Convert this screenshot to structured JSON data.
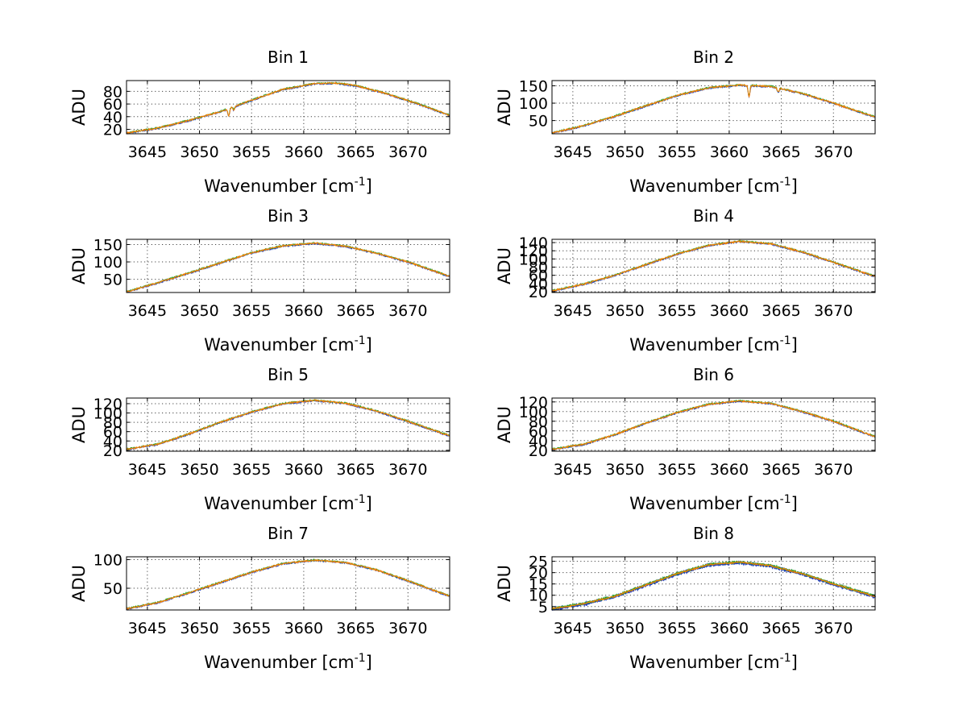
{
  "colors": {
    "series_top": "#ff7f00",
    "series_mid": "#2ca02c",
    "series_low": "#1f3fbf",
    "grid": "#444444",
    "axis": "#000000"
  },
  "chart_data": [
    {
      "type": "line",
      "title": "Bin 1",
      "xlabel": "Wavenumber [cm",
      "xlabel_sup": "-1",
      "xlabel_tail": "]",
      "ylabel": "ADU",
      "xlim": [
        3643,
        3674
      ],
      "ylim": [
        13,
        97
      ],
      "xticks": [
        3645,
        3650,
        3655,
        3660,
        3665,
        3670
      ],
      "xtick_labels": [
        "3645",
        "3650",
        "3655",
        "3660",
        "3665",
        "3670"
      ],
      "yticks": [
        20,
        40,
        60,
        80
      ],
      "ytick_labels": [
        "20",
        "40",
        "60",
        "80"
      ],
      "curve": {
        "x": [
          3643,
          3646,
          3649,
          3652,
          3655,
          3658,
          3661,
          3663,
          3665,
          3668,
          3671,
          3674
        ],
        "y": [
          14,
          22,
          34,
          48,
          66,
          83,
          92,
          93,
          89,
          76,
          60,
          42
        ]
      },
      "dips": [
        {
          "x": 3652.8,
          "depth": 11
        },
        {
          "x": 3653.3,
          "depth": 5
        }
      ]
    },
    {
      "type": "line",
      "title": "Bin 2",
      "xlabel": "Wavenumber [cm",
      "xlabel_sup": "-1",
      "xlabel_tail": "]",
      "ylabel": "ADU",
      "xlim": [
        3643,
        3674
      ],
      "ylim": [
        12,
        165
      ],
      "xticks": [
        3645,
        3650,
        3655,
        3660,
        3665,
        3670
      ],
      "xtick_labels": [
        "3645",
        "3650",
        "3655",
        "3660",
        "3665",
        "3670"
      ],
      "yticks": [
        50,
        100,
        150
      ],
      "ytick_labels": [
        "50",
        "100",
        "150"
      ],
      "curve": {
        "x": [
          3643,
          3646,
          3649,
          3652,
          3655,
          3658,
          3661,
          3664,
          3667,
          3670,
          3674
        ],
        "y": [
          14,
          35,
          62,
          92,
          122,
          144,
          152,
          148,
          128,
          100,
          60
        ]
      },
      "dips": [
        {
          "x": 3661.9,
          "depth": 32
        },
        {
          "x": 3664.7,
          "depth": 12
        }
      ]
    },
    {
      "type": "line",
      "title": "Bin 3",
      "xlabel": "Wavenumber [cm",
      "xlabel_sup": "-1",
      "xlabel_tail": "]",
      "ylabel": "ADU",
      "xlim": [
        3643,
        3674
      ],
      "ylim": [
        12,
        165
      ],
      "xticks": [
        3645,
        3650,
        3655,
        3660,
        3665,
        3670
      ],
      "xtick_labels": [
        "3645",
        "3650",
        "3655",
        "3660",
        "3665",
        "3670"
      ],
      "yticks": [
        50,
        100,
        150
      ],
      "ytick_labels": [
        "50",
        "100",
        "150"
      ],
      "curve": {
        "x": [
          3643,
          3646,
          3649,
          3652,
          3655,
          3658,
          3661,
          3664,
          3667,
          3670,
          3674
        ],
        "y": [
          14,
          40,
          68,
          97,
          126,
          146,
          154,
          145,
          125,
          100,
          58
        ]
      },
      "dips": []
    },
    {
      "type": "line",
      "title": "Bin 4",
      "xlabel": "Wavenumber [cm",
      "xlabel_sup": "-1",
      "xlabel_tail": "]",
      "ylabel": "ADU",
      "xlim": [
        3643,
        3674
      ],
      "ylim": [
        18,
        148
      ],
      "xticks": [
        3645,
        3650,
        3655,
        3660,
        3665,
        3670
      ],
      "xtick_labels": [
        "3645",
        "3650",
        "3655",
        "3660",
        "3665",
        "3670"
      ],
      "yticks": [
        20,
        40,
        60,
        80,
        100,
        120,
        140
      ],
      "ytick_labels": [
        "20",
        "40",
        "60",
        "80",
        "100",
        "120",
        "140"
      ],
      "curve": {
        "x": [
          3643,
          3646,
          3649,
          3652,
          3655,
          3658,
          3661,
          3664,
          3667,
          3670,
          3674
        ],
        "y": [
          22,
          38,
          60,
          86,
          112,
          133,
          143,
          137,
          117,
          92,
          57
        ]
      },
      "dips": []
    },
    {
      "type": "line",
      "title": "Bin 5",
      "xlabel": "Wavenumber [cm",
      "xlabel_sup": "-1",
      "xlabel_tail": "]",
      "ylabel": "ADU",
      "xlim": [
        3643,
        3674
      ],
      "ylim": [
        18,
        132
      ],
      "xticks": [
        3645,
        3650,
        3655,
        3660,
        3665,
        3670
      ],
      "xtick_labels": [
        "3645",
        "3650",
        "3655",
        "3660",
        "3665",
        "3670"
      ],
      "yticks": [
        20,
        40,
        60,
        80,
        100,
        120
      ],
      "ytick_labels": [
        "20",
        "40",
        "60",
        "80",
        "100",
        "120"
      ],
      "curve": {
        "x": [
          3643,
          3646,
          3649,
          3652,
          3655,
          3658,
          3661,
          3664,
          3667,
          3670,
          3674
        ],
        "y": [
          22,
          33,
          55,
          80,
          102,
          120,
          127,
          121,
          104,
          82,
          51
        ]
      },
      "dips": []
    },
    {
      "type": "line",
      "title": "Bin 6",
      "xlabel": "Wavenumber [cm",
      "xlabel_sup": "-1",
      "xlabel_tail": "]",
      "ylabel": "ADU",
      "xlim": [
        3643,
        3674
      ],
      "ylim": [
        18,
        128
      ],
      "xticks": [
        3645,
        3650,
        3655,
        3660,
        3665,
        3670
      ],
      "xtick_labels": [
        "3645",
        "3650",
        "3655",
        "3660",
        "3665",
        "3670"
      ],
      "yticks": [
        20,
        40,
        60,
        80,
        100,
        120
      ],
      "ytick_labels": [
        "20",
        "40",
        "60",
        "80",
        "100",
        "120"
      ],
      "curve": {
        "x": [
          3643,
          3646,
          3649,
          3652,
          3655,
          3658,
          3661,
          3664,
          3667,
          3670,
          3674
        ],
        "y": [
          22,
          32,
          52,
          76,
          98,
          115,
          122,
          117,
          100,
          80,
          48
        ]
      },
      "dips": []
    },
    {
      "type": "line",
      "title": "Bin 7",
      "xlabel": "Wavenumber [cm",
      "xlabel_sup": "-1",
      "xlabel_tail": "]",
      "ylabel": "ADU",
      "xlim": [
        3643,
        3674
      ],
      "ylim": [
        12,
        105
      ],
      "xticks": [
        3645,
        3650,
        3655,
        3660,
        3665,
        3670
      ],
      "xtick_labels": [
        "3645",
        "3650",
        "3655",
        "3660",
        "3665",
        "3670"
      ],
      "yticks": [
        50,
        100
      ],
      "ytick_labels": [
        "50",
        "100"
      ],
      "curve": {
        "x": [
          3643,
          3646,
          3649,
          3652,
          3655,
          3658,
          3661,
          3664,
          3667,
          3670,
          3674
        ],
        "y": [
          14,
          25,
          42,
          60,
          78,
          93,
          99,
          95,
          82,
          63,
          36
        ]
      },
      "dips": []
    },
    {
      "type": "line",
      "title": "Bin 8",
      "xlabel": "Wavenumber [cm",
      "xlabel_sup": "-1",
      "xlabel_tail": "]",
      "ylabel": "ADU",
      "xlim": [
        3643,
        3674
      ],
      "ylim": [
        3.5,
        27
      ],
      "xticks": [
        3645,
        3650,
        3655,
        3660,
        3665,
        3670
      ],
      "xtick_labels": [
        "3645",
        "3650",
        "3655",
        "3660",
        "3665",
        "3670"
      ],
      "yticks": [
        5,
        10,
        15,
        20,
        25
      ],
      "ytick_labels": [
        "5",
        "10",
        "15",
        "20",
        "25"
      ],
      "curve": {
        "x": [
          3643,
          3646,
          3649,
          3652,
          3655,
          3658,
          3661,
          3664,
          3667,
          3670,
          3674
        ],
        "y": [
          4,
          6.2,
          9.5,
          14.5,
          19.5,
          23.5,
          24.6,
          23,
          19.5,
          15,
          9.5
        ]
      },
      "dips": []
    }
  ]
}
